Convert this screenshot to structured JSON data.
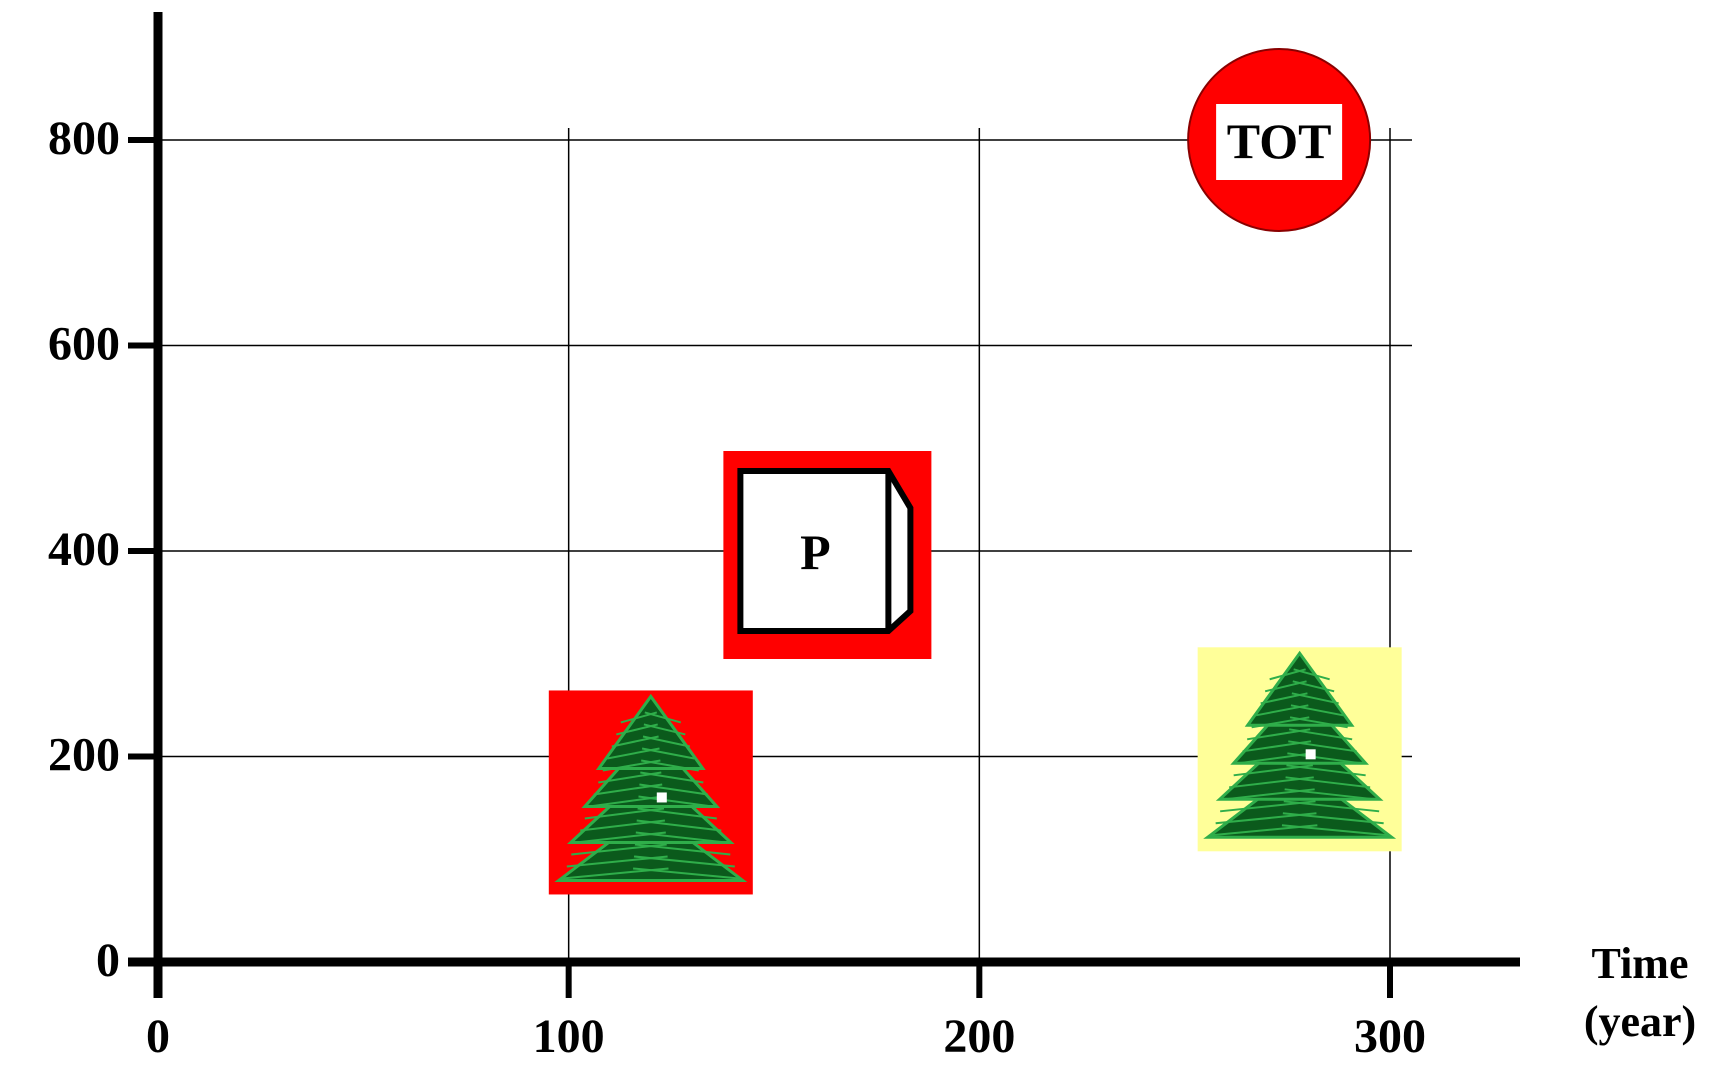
{
  "chart_data": {
    "type": "scatter",
    "title": "",
    "x_axis": {
      "title_lines": [
        "Time",
        "(year)"
      ],
      "range": [
        0,
        300
      ],
      "ticks": [
        0,
        100,
        200,
        300
      ]
    },
    "y_axis": {
      "title": "",
      "range": [
        0,
        800
      ],
      "ticks": [
        0,
        200,
        400,
        600,
        800
      ]
    },
    "grid": true,
    "points": [
      {
        "x": 120,
        "y": 165,
        "marker": "tree-icon",
        "background": "#ff0000"
      },
      {
        "x": 163,
        "y": 400,
        "marker": "box-icon",
        "label": "P",
        "background": "#ff0000"
      },
      {
        "x": 273,
        "y": 800,
        "marker": "circle-badge",
        "label": "TOT",
        "background": "#ff0000"
      },
      {
        "x": 278,
        "y": 207,
        "marker": "tree-icon",
        "background": "#ffff99"
      }
    ],
    "colors": {
      "axis": "#000000",
      "grid": "#000000",
      "red": "#ff0000",
      "yellow": "#ffff99",
      "tree_dark": "#0b5a1c",
      "tree_light": "#2fae4a"
    }
  }
}
